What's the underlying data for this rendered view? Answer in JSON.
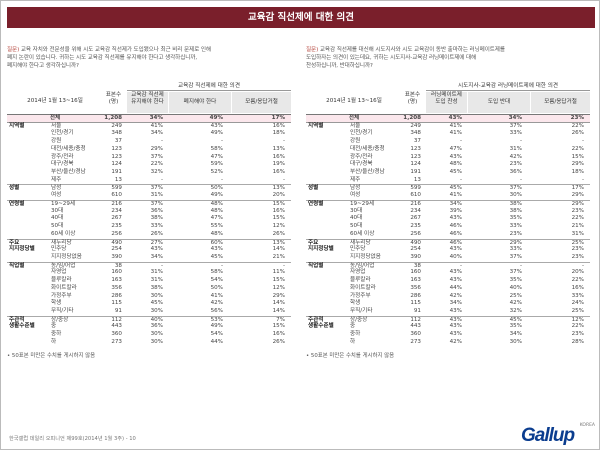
{
  "title": "교육감 직선제에 대한 의견",
  "left": {
    "question_label": "질문)",
    "question_lines": [
      "교육 자치와 전문성을 위해 시도 교육감 직선제가 도입됐으나 최근 비리 문제로 인해",
      "폐지 논란이 있습니다. 귀하는 시도 교육감 직선제를 유지해야 한다고 생각하십니까,",
      "폐지해야 한다고 생각하십니까?"
    ],
    "date": "2014년 1월 13~16일",
    "group": "교육감 직선제에 대한 의견",
    "headers": {
      "n": "표본수\n(명)",
      "a": "교육감 직선제\n유지해야 한다",
      "b": "폐지해야 한다",
      "c": "모름/응답거절"
    }
  },
  "right": {
    "question_label": "질문)",
    "question_lines": [
      "교육감 직선제를 대신해 시도지사와 시도 교육감이 동반 출마하는 러닝메이트제를",
      "도입하자는 의견이 있는데요, 귀하는 시도지사-교육감 러닝메이트제에 대해",
      "찬성하십니까, 반대하십니까?"
    ],
    "date": "2014년 1월 13~16일",
    "group": "시도지사-교육감 러닝메이트제에 대한 의견",
    "headers": {
      "n": "표본수\n(명)",
      "a": "러닝메이트제\n도입 찬성",
      "b": "도입 반대",
      "c": "모름/응답거절"
    }
  },
  "rows": [
    {
      "cat": "",
      "label": "전체",
      "n": "1,208",
      "L": [
        "34%",
        "49%",
        "17%"
      ],
      "R": [
        "43%",
        "34%",
        "23%"
      ],
      "total": true
    },
    {
      "cat": "지역별",
      "label": "서울",
      "n": "249",
      "L": [
        "41%",
        "43%",
        "16%"
      ],
      "R": [
        "41%",
        "37%",
        "22%"
      ]
    },
    {
      "cat": "",
      "label": "인천/경기",
      "n": "348",
      "L": [
        "34%",
        "49%",
        "18%"
      ],
      "R": [
        "41%",
        "33%",
        "26%"
      ]
    },
    {
      "cat": "",
      "label": "강원",
      "n": "37",
      "L": [
        "-",
        "-",
        "-"
      ],
      "R": [
        "-",
        "-",
        "-"
      ]
    },
    {
      "cat": "",
      "label": "대전/세종/충청",
      "n": "123",
      "L": [
        "29%",
        "58%",
        "13%"
      ],
      "R": [
        "47%",
        "31%",
        "22%"
      ]
    },
    {
      "cat": "",
      "label": "광주/전라",
      "n": "123",
      "L": [
        "37%",
        "47%",
        "16%"
      ],
      "R": [
        "43%",
        "42%",
        "15%"
      ]
    },
    {
      "cat": "",
      "label": "대구/경북",
      "n": "124",
      "L": [
        "22%",
        "59%",
        "19%"
      ],
      "R": [
        "48%",
        "23%",
        "29%"
      ]
    },
    {
      "cat": "",
      "label": "부산/울산/경남",
      "n": "191",
      "L": [
        "32%",
        "52%",
        "16%"
      ],
      "R": [
        "45%",
        "36%",
        "18%"
      ]
    },
    {
      "cat": "",
      "label": "제주",
      "n": "13",
      "L": [
        "-",
        "-",
        "-"
      ],
      "R": [
        "-",
        "-",
        "-"
      ]
    },
    {
      "cat": "성별",
      "label": "남성",
      "n": "599",
      "L": [
        "37%",
        "50%",
        "13%"
      ],
      "R": [
        "45%",
        "37%",
        "17%"
      ],
      "sep": true
    },
    {
      "cat": "",
      "label": "여성",
      "n": "610",
      "L": [
        "31%",
        "49%",
        "20%"
      ],
      "R": [
        "41%",
        "30%",
        "29%"
      ]
    },
    {
      "cat": "연령별",
      "label": "19~29세",
      "n": "216",
      "L": [
        "37%",
        "48%",
        "15%"
      ],
      "R": [
        "34%",
        "38%",
        "29%"
      ],
      "sep": true
    },
    {
      "cat": "",
      "label": "30대",
      "n": "234",
      "L": [
        "36%",
        "48%",
        "16%"
      ],
      "R": [
        "39%",
        "38%",
        "23%"
      ]
    },
    {
      "cat": "",
      "label": "40대",
      "n": "267",
      "L": [
        "38%",
        "47%",
        "15%"
      ],
      "R": [
        "43%",
        "35%",
        "22%"
      ]
    },
    {
      "cat": "",
      "label": "50대",
      "n": "235",
      "L": [
        "33%",
        "55%",
        "12%"
      ],
      "R": [
        "46%",
        "33%",
        "21%"
      ]
    },
    {
      "cat": "",
      "label": "60세 이상",
      "n": "256",
      "L": [
        "26%",
        "48%",
        "26%"
      ],
      "R": [
        "46%",
        "23%",
        "31%"
      ]
    },
    {
      "cat": "주요",
      "label": "새누리당",
      "n": "490",
      "L": [
        "27%",
        "60%",
        "13%"
      ],
      "R": [
        "46%",
        "29%",
        "25%"
      ],
      "sep": true
    },
    {
      "cat": "지지정당별",
      "label": "민주당",
      "n": "254",
      "L": [
        "43%",
        "43%",
        "14%"
      ],
      "R": [
        "43%",
        "33%",
        "23%"
      ]
    },
    {
      "cat": "",
      "label": "지지정당없음",
      "n": "390",
      "L": [
        "34%",
        "45%",
        "21%"
      ],
      "R": [
        "40%",
        "37%",
        "23%"
      ]
    },
    {
      "cat": "직업별",
      "label": "농/임/어업",
      "n": "38",
      "L": [
        "-",
        "-",
        "-"
      ],
      "R": [
        "-",
        "-",
        "-"
      ],
      "sep": true
    },
    {
      "cat": "",
      "label": "자영업",
      "n": "160",
      "L": [
        "31%",
        "58%",
        "11%"
      ],
      "R": [
        "43%",
        "37%",
        "20%"
      ]
    },
    {
      "cat": "",
      "label": "블루칼라",
      "n": "163",
      "L": [
        "31%",
        "54%",
        "15%"
      ],
      "R": [
        "43%",
        "35%",
        "22%"
      ]
    },
    {
      "cat": "",
      "label": "화이트칼라",
      "n": "356",
      "L": [
        "38%",
        "50%",
        "12%"
      ],
      "R": [
        "44%",
        "40%",
        "16%"
      ]
    },
    {
      "cat": "",
      "label": "가정주부",
      "n": "286",
      "L": [
        "30%",
        "41%",
        "29%"
      ],
      "R": [
        "42%",
        "25%",
        "33%"
      ]
    },
    {
      "cat": "",
      "label": "학생",
      "n": "115",
      "L": [
        "45%",
        "42%",
        "14%"
      ],
      "R": [
        "34%",
        "42%",
        "24%"
      ]
    },
    {
      "cat": "",
      "label": "무직/기타",
      "n": "91",
      "L": [
        "30%",
        "56%",
        "14%"
      ],
      "R": [
        "43%",
        "32%",
        "25%"
      ]
    },
    {
      "cat": "주관적",
      "label": "상/중상",
      "n": "112",
      "L": [
        "40%",
        "53%",
        "7%"
      ],
      "R": [
        "43%",
        "45%",
        "12%"
      ],
      "sep": true
    },
    {
      "cat": "생활수준별",
      "label": "중",
      "n": "443",
      "L": [
        "36%",
        "49%",
        "15%"
      ],
      "R": [
        "43%",
        "35%",
        "22%"
      ]
    },
    {
      "cat": "",
      "label": "중하",
      "n": "360",
      "L": [
        "30%",
        "54%",
        "16%"
      ],
      "R": [
        "43%",
        "34%",
        "23%"
      ]
    },
    {
      "cat": "",
      "label": "하",
      "n": "273",
      "L": [
        "30%",
        "44%",
        "26%"
      ],
      "R": [
        "42%",
        "30%",
        "28%"
      ]
    }
  ],
  "footnote": "• 50표본 미만은 수치를 게시하지 않음",
  "source": "한국갤럽 데일리 오피니언 제99호(2014년 1월 3주) - 10",
  "logo": {
    "text": "Gallup",
    "korea": "KOREA"
  }
}
